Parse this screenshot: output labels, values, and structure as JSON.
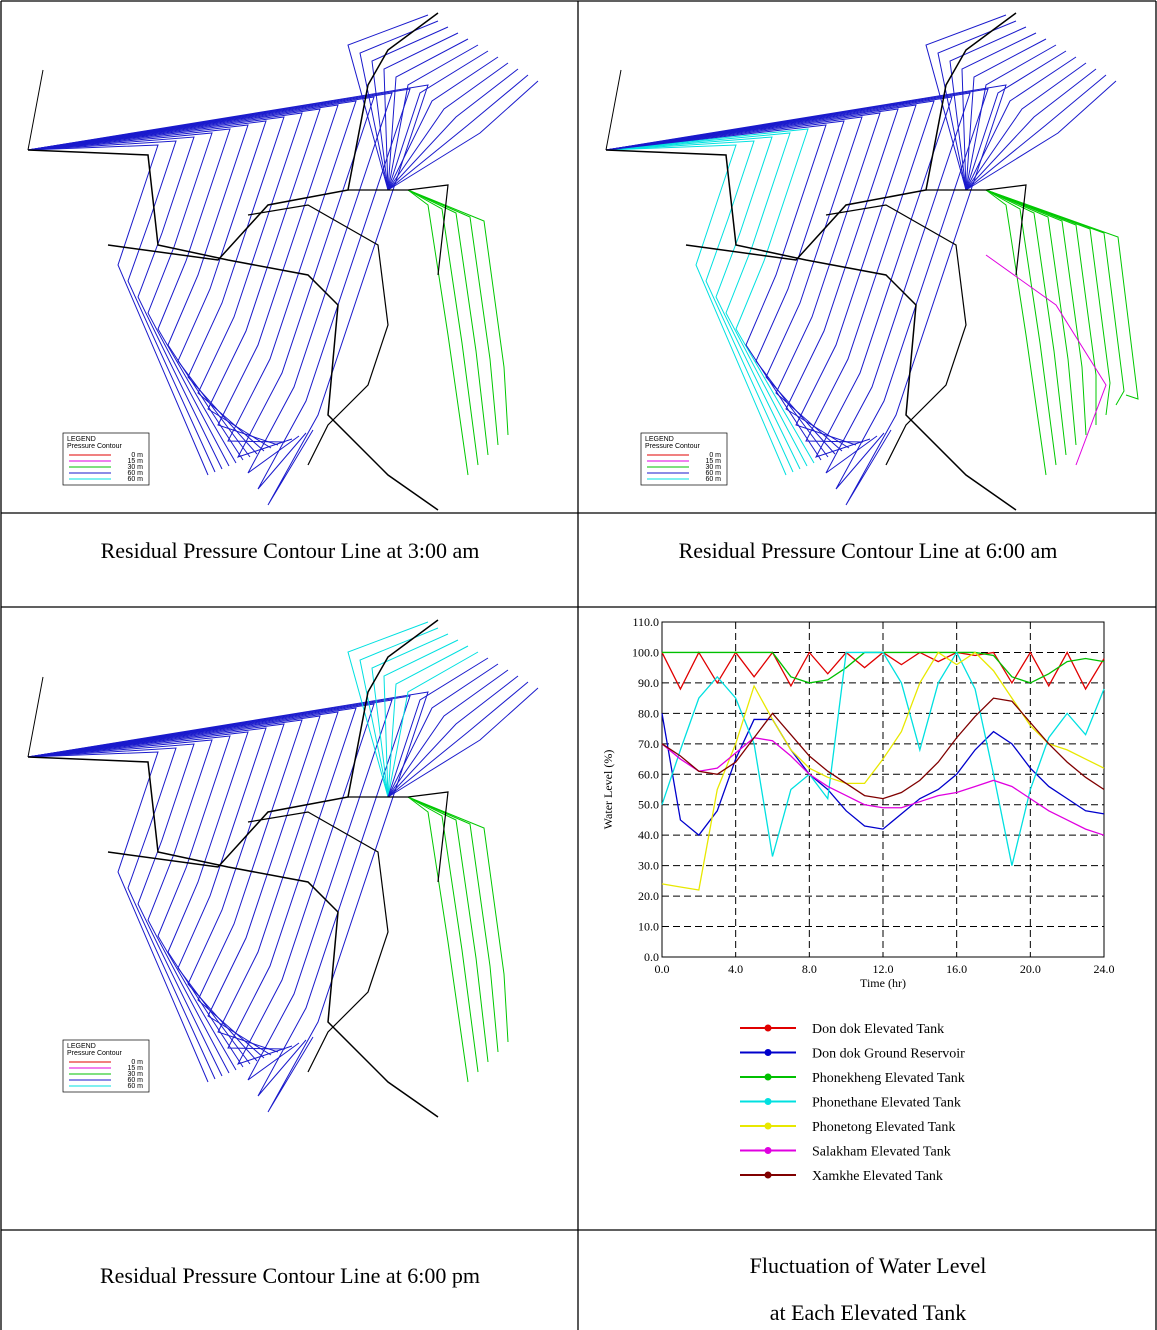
{
  "map_legend": {
    "title": "LEGEND",
    "subtitle": "Pressure Contour",
    "items": [
      "0 m",
      "15 m",
      "30 m",
      "60 m",
      "60 m"
    ]
  },
  "captions": [
    "Residual Pressure Contour Line at 3:00 am",
    "Residual Pressure Contour Line at 6:00 am",
    "Residual Pressure Contour Line at 6:00 pm",
    "Fluctuation of Water Level",
    "at Each Elevated Tank"
  ],
  "chart_data": {
    "type": "line",
    "x_label": "Time (hr)",
    "y_label": "Water Level (%)",
    "x": [
      0,
      1,
      2,
      3,
      4,
      5,
      6,
      7,
      8,
      9,
      10,
      11,
      12,
      13,
      14,
      15,
      16,
      17,
      18,
      19,
      20,
      21,
      22,
      23,
      24
    ],
    "xlim": [
      0,
      24
    ],
    "xticks": [
      {
        "value": 0,
        "label": "0.0"
      },
      {
        "value": 4,
        "label": "4.0"
      },
      {
        "value": 8,
        "label": "8.0"
      },
      {
        "value": 12,
        "label": "12.0"
      },
      {
        "value": 16,
        "label": "16.0"
      },
      {
        "value": 20,
        "label": "20.0"
      },
      {
        "value": 24,
        "label": "24.0"
      }
    ],
    "ylim": [
      0,
      110
    ],
    "yticks": [
      {
        "value": 0,
        "label": "0.0"
      },
      {
        "value": 10,
        "label": "10.0"
      },
      {
        "value": 20,
        "label": "20.0"
      },
      {
        "value": 30,
        "label": "30.0"
      },
      {
        "value": 40,
        "label": "40.0"
      },
      {
        "value": 50,
        "label": "50.0"
      },
      {
        "value": 60,
        "label": "60.0"
      },
      {
        "value": 70,
        "label": "70.0"
      },
      {
        "value": 80,
        "label": "80.0"
      },
      {
        "value": 90,
        "label": "90.0"
      },
      {
        "value": 100,
        "label": "100.0"
      },
      {
        "value": 110,
        "label": "110.0"
      }
    ],
    "grid": true,
    "series": [
      {
        "name": "Don dok Elevated Tank",
        "color": "#e00000",
        "values": [
          100,
          88,
          100,
          90,
          100,
          92,
          100,
          89,
          100,
          93,
          100,
          95,
          100,
          96,
          100,
          97,
          100,
          99,
          100,
          90,
          100,
          89,
          100,
          88,
          98
        ]
      },
      {
        "name": "Don dok Ground Reservoir",
        "color": "#0000cc",
        "values": [
          80,
          45,
          40,
          48,
          65,
          78,
          78,
          68,
          60,
          55,
          48,
          43,
          42,
          47,
          52,
          55,
          60,
          68,
          74,
          70,
          62,
          56,
          52,
          48,
          47
        ]
      },
      {
        "name": "Phonekheng Elevated Tank",
        "color": "#00c000",
        "values": [
          100,
          100,
          100,
          100,
          100,
          100,
          100,
          92,
          90,
          91,
          95,
          100,
          100,
          100,
          100,
          100,
          100,
          100,
          99,
          92,
          90,
          93,
          97,
          98,
          97
        ]
      },
      {
        "name": "Phonethane Elevated Tank",
        "color": "#00e0e0",
        "values": [
          50,
          68,
          85,
          92,
          85,
          70,
          33,
          55,
          60,
          52,
          100,
          100,
          100,
          90,
          68,
          90,
          100,
          88,
          60,
          30,
          55,
          72,
          80,
          73,
          88
        ]
      },
      {
        "name": "Phonetong Elevated Tank",
        "color": "#e8e800",
        "values": [
          24,
          23,
          22,
          55,
          70,
          89,
          78,
          68,
          62,
          59,
          57,
          57,
          65,
          74,
          90,
          100,
          96,
          100,
          94,
          85,
          76,
          70,
          68,
          65,
          62
        ]
      },
      {
        "name": "Salakham Elevated Tank",
        "color": "#e000e0",
        "values": [
          70,
          65,
          61,
          62,
          67,
          72,
          71,
          66,
          60,
          56,
          53,
          50,
          49,
          49,
          51,
          53,
          54,
          56,
          58,
          56,
          52,
          48,
          45,
          42,
          40
        ]
      },
      {
        "name": "Xamkhe Elevated Tank",
        "color": "#800000",
        "values": [
          70,
          66,
          61,
          60,
          64,
          72,
          80,
          73,
          66,
          61,
          57,
          53,
          52,
          54,
          58,
          64,
          72,
          79,
          85,
          84,
          77,
          70,
          64,
          59,
          55
        ]
      }
    ]
  }
}
